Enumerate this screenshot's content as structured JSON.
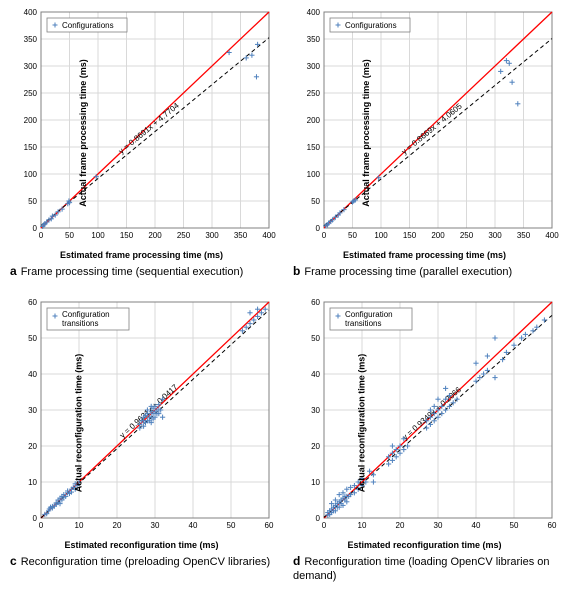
{
  "colors": {
    "identity_line": "#ff0000",
    "fit_line": "#000000",
    "marker": "#4f81bd",
    "grid": "#d9d9d9",
    "border": "#808080",
    "bg": "#ffffff"
  },
  "panels": [
    {
      "id": "a",
      "caption_letter": "a",
      "caption_text": "Frame processing time (sequential execution)",
      "xlabel": "Estimated frame processing time (ms)",
      "ylabel": "Actual frame processing time (ms)",
      "xlim": [
        0,
        400
      ],
      "ylim": [
        0,
        400
      ],
      "tick_step": 50,
      "legend": "Configurations",
      "legend_pos": "tl",
      "fit_slope": 0.8691,
      "fit_intercept": 4.7704,
      "equation": "y = 0.8691x + 4.7704",
      "points": [
        [
          3,
          3
        ],
        [
          5,
          6
        ],
        [
          7,
          8
        ],
        [
          10,
          11
        ],
        [
          14,
          15
        ],
        [
          18,
          17
        ],
        [
          20,
          22
        ],
        [
          25,
          24
        ],
        [
          30,
          30
        ],
        [
          37,
          35
        ],
        [
          47,
          45
        ],
        [
          49,
          50
        ],
        [
          50,
          47
        ],
        [
          97,
          95
        ],
        [
          330,
          325
        ],
        [
          360,
          315
        ],
        [
          370,
          320
        ],
        [
          378,
          280
        ],
        [
          380,
          340
        ]
      ]
    },
    {
      "id": "b",
      "caption_letter": "b",
      "caption_text": "Frame processing time (parallel execution)",
      "xlabel": "Estimated frame processing time (ms)",
      "ylabel": "Actual frame processing time (ms)",
      "xlim": [
        0,
        400
      ],
      "ylim": [
        0,
        400
      ],
      "tick_step": 50,
      "legend": "Configurations",
      "legend_pos": "tl",
      "fit_slope": 0.8669,
      "fit_intercept": 4.0605,
      "equation": "y = 0.8669x + 4.0605",
      "points": [
        [
          3,
          4
        ],
        [
          6,
          6
        ],
        [
          8,
          9
        ],
        [
          12,
          12
        ],
        [
          15,
          15
        ],
        [
          20,
          20
        ],
        [
          25,
          24
        ],
        [
          28,
          28
        ],
        [
          35,
          34
        ],
        [
          50,
          48
        ],
        [
          52,
          50
        ],
        [
          55,
          52
        ],
        [
          96,
          93
        ],
        [
          310,
          290
        ],
        [
          320,
          310
        ],
        [
          325,
          305
        ],
        [
          330,
          270
        ],
        [
          340,
          230
        ]
      ]
    },
    {
      "id": "c",
      "caption_letter": "c",
      "caption_text": "Reconfiguration time (preloading OpenCV libraries)",
      "xlabel": "Estimated reconfiguration time (ms)",
      "ylabel": "Actual reconfiguration time (ms)",
      "xlim": [
        0,
        60
      ],
      "ylim": [
        0,
        60
      ],
      "tick_step": 10,
      "legend": "Configuration transitions",
      "legend_pos": "tl2",
      "fit_slope": 0.9621,
      "fit_intercept": 0.0417,
      "equation": "y = 0.9621x + 0.0417",
      "points": [
        [
          1,
          1
        ],
        [
          1.5,
          1.2
        ],
        [
          2,
          2
        ],
        [
          2.2,
          2.5
        ],
        [
          2.5,
          3
        ],
        [
          3,
          2.8
        ],
        [
          3,
          3.2
        ],
        [
          3.5,
          3.3
        ],
        [
          4,
          3.8
        ],
        [
          4,
          4.2
        ],
        [
          4.5,
          4.3
        ],
        [
          4.5,
          5
        ],
        [
          5,
          4
        ],
        [
          5,
          5.5
        ],
        [
          5.5,
          5
        ],
        [
          5.5,
          6
        ],
        [
          6,
          5.8
        ],
        [
          6,
          6.5
        ],
        [
          6.5,
          6
        ],
        [
          7,
          7
        ],
        [
          7,
          7.5
        ],
        [
          7.5,
          6.8
        ],
        [
          8,
          8
        ],
        [
          8,
          7.2
        ],
        [
          8.5,
          8.5
        ],
        [
          9,
          8
        ],
        [
          9,
          9.5
        ],
        [
          9.5,
          9
        ],
        [
          10,
          10
        ],
        [
          26,
          25
        ],
        [
          26,
          26
        ],
        [
          26.5,
          27
        ],
        [
          27,
          25.5
        ],
        [
          27,
          27
        ],
        [
          27,
          28
        ],
        [
          27.5,
          26.5
        ],
        [
          27.5,
          28.5
        ],
        [
          28,
          27
        ],
        [
          28,
          29
        ],
        [
          28,
          30
        ],
        [
          28.5,
          27
        ],
        [
          28.5,
          28
        ],
        [
          29,
          26.5
        ],
        [
          29,
          28
        ],
        [
          29,
          29.5
        ],
        [
          29,
          31
        ],
        [
          29.5,
          27.5
        ],
        [
          29.5,
          29
        ],
        [
          29.5,
          30.5
        ],
        [
          30,
          28
        ],
        [
          30,
          29.5
        ],
        [
          30,
          31
        ],
        [
          30.5,
          29
        ],
        [
          30.5,
          30
        ],
        [
          31,
          29
        ],
        [
          31,
          30
        ],
        [
          31,
          31.5
        ],
        [
          31.5,
          30
        ],
        [
          32,
          33
        ],
        [
          32,
          28
        ],
        [
          53,
          52
        ],
        [
          54,
          53
        ],
        [
          55,
          54
        ],
        [
          55,
          57
        ],
        [
          56,
          55
        ],
        [
          57,
          56
        ],
        [
          57,
          58
        ],
        [
          58,
          57
        ],
        [
          59,
          58
        ]
      ]
    },
    {
      "id": "d",
      "caption_letter": "d",
      "caption_text": "Reconfiguration time (loading OpenCV libraries on demand)",
      "xlabel": "Estimated reconfiguration time (ms)",
      "ylabel": "Actual reconfiguration time (ms)",
      "xlim": [
        0,
        60
      ],
      "ylim": [
        0,
        60
      ],
      "tick_step": 10,
      "legend": "Configuration transitions",
      "legend_pos": "tl2",
      "fit_slope": 0.9349,
      "fit_intercept": 0.2066,
      "equation": "y = 0.9349x + 0.2066",
      "points": [
        [
          1,
          0.8
        ],
        [
          1,
          1.5
        ],
        [
          1.5,
          1
        ],
        [
          1.5,
          2
        ],
        [
          2,
          1.5
        ],
        [
          2,
          2.5
        ],
        [
          2,
          4
        ],
        [
          2.5,
          2
        ],
        [
          2.5,
          3
        ],
        [
          3,
          2
        ],
        [
          3,
          3.5
        ],
        [
          3,
          5
        ],
        [
          3.5,
          3
        ],
        [
          3.5,
          4
        ],
        [
          4,
          3
        ],
        [
          4,
          4.5
        ],
        [
          4,
          6.5
        ],
        [
          4.5,
          4
        ],
        [
          4.5,
          5
        ],
        [
          5,
          3.5
        ],
        [
          5,
          5.5
        ],
        [
          5,
          7
        ],
        [
          5.5,
          5
        ],
        [
          5.5,
          6
        ],
        [
          6,
          4.5
        ],
        [
          6,
          6
        ],
        [
          6,
          8
        ],
        [
          6.5,
          6
        ],
        [
          7,
          6.5
        ],
        [
          7,
          8.5
        ],
        [
          8,
          7
        ],
        [
          8,
          9
        ],
        [
          9,
          8
        ],
        [
          9,
          10
        ],
        [
          10,
          9
        ],
        [
          10,
          11
        ],
        [
          11,
          10
        ],
        [
          12,
          13
        ],
        [
          13,
          10
        ],
        [
          13,
          12
        ],
        [
          17,
          15
        ],
        [
          17,
          17
        ],
        [
          18,
          16
        ],
        [
          18,
          18
        ],
        [
          18,
          20
        ],
        [
          19,
          17
        ],
        [
          19,
          19
        ],
        [
          20,
          18
        ],
        [
          20,
          20
        ],
        [
          21,
          19
        ],
        [
          21,
          22
        ],
        [
          22,
          20
        ],
        [
          27,
          25
        ],
        [
          27,
          27
        ],
        [
          28,
          26
        ],
        [
          28,
          28
        ],
        [
          28,
          30
        ],
        [
          29,
          27
        ],
        [
          29,
          29
        ],
        [
          29,
          31
        ],
        [
          30,
          28
        ],
        [
          30,
          30
        ],
        [
          30,
          33
        ],
        [
          31,
          29
        ],
        [
          31,
          31
        ],
        [
          32,
          30
        ],
        [
          32,
          33
        ],
        [
          32,
          36
        ],
        [
          33,
          31
        ],
        [
          33,
          34
        ],
        [
          34,
          32
        ],
        [
          35,
          33
        ],
        [
          40,
          38
        ],
        [
          40,
          43
        ],
        [
          41,
          39
        ],
        [
          42,
          40
        ],
        [
          43,
          41
        ],
        [
          43,
          45
        ],
        [
          45,
          39
        ],
        [
          45,
          50
        ],
        [
          47,
          44
        ],
        [
          48,
          46
        ],
        [
          50,
          48
        ],
        [
          52,
          50
        ],
        [
          53,
          51
        ],
        [
          55,
          52
        ],
        [
          56,
          53
        ],
        [
          58,
          55
        ]
      ]
    }
  ]
}
